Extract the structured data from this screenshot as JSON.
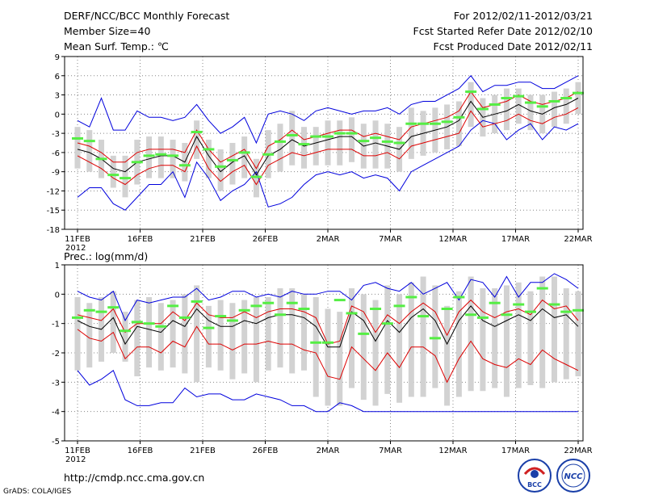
{
  "header": {
    "title": "DERF/NCC/BCC Monthly Forecast",
    "member_size": "Member Size=40",
    "variable1": "Mean Surf. Temp.: ℃",
    "period": "For 2012/02/11-2012/03/21",
    "start_date": "Fcst Started Refer Date 2012/02/10",
    "produced_date": "Fcst Produced Date 2012/02/11"
  },
  "panel2_label": "Prec.: log(mm/d)",
  "footer": {
    "url": "http://cmdp.ncc.cma.gov.cn",
    "grads": "GrADS: COLA/IGES"
  },
  "logos": {
    "bcc": "BCC",
    "ncc": "NCC"
  },
  "colors": {
    "box": "#d2d2d2",
    "median": "#55ee44",
    "mean": "#000000",
    "inner": "#dd0000",
    "outer": "#0000dd",
    "grid": "#888888"
  },
  "chart_data": [
    {
      "type": "line",
      "title": "Mean Surf. Temp.: ℃",
      "ylim": [
        -18,
        9
      ],
      "yticks": [
        -18,
        -15,
        -12,
        -9,
        -6,
        -3,
        0,
        3,
        6,
        9
      ],
      "xticks": [
        "11FEB",
        "16FEB",
        "21FEB",
        "26FEB",
        "2MAR",
        "7MAR",
        "12MAR",
        "17MAR",
        "22MAR"
      ],
      "xtick_year": "2012",
      "x_days": 40,
      "series": [
        {
          "name": "max",
          "values": [
            -13,
            -11.5,
            -11.5,
            -14,
            -15,
            -13,
            -11,
            -11,
            -9,
            -13,
            -7.5,
            -10,
            -13.5,
            -12,
            -11,
            -9,
            -14.5,
            -14,
            -13,
            -11,
            -9.5,
            -9,
            -9.5,
            -9,
            -10,
            -9.5,
            -10,
            -12,
            -9,
            -8,
            -7,
            -6,
            -5,
            -2.5,
            -1,
            -1.5,
            -4,
            -2.5,
            -1.5,
            -4,
            -2,
            -2.5,
            -1.5
          ]
        },
        {
          "name": "min_line",
          "values": [
            -1,
            -2,
            2.5,
            -2.5,
            -2.5,
            0.5,
            -0.5,
            -0.5,
            -1,
            -0.5,
            1.5,
            -1,
            -3,
            -2,
            -0.5,
            -4.5,
            0,
            0.5,
            0,
            -1,
            0.5,
            1,
            0.5,
            0,
            0.5,
            0.5,
            1,
            0,
            1.5,
            2,
            2,
            3,
            4,
            6,
            3.5,
            4.5,
            4.5,
            5,
            5,
            4,
            4,
            5,
            6
          ]
        },
        {
          "name": "p_upper",
          "values": [
            -4.5,
            -5,
            -6,
            -7.5,
            -7.5,
            -6,
            -5.5,
            -5.5,
            -5.5,
            -6,
            -2.5,
            -5.5,
            -7.5,
            -6.5,
            -5.5,
            -8.5,
            -5,
            -4,
            -2.5,
            -4,
            -3.5,
            -3,
            -2.5,
            -2.5,
            -3.5,
            -3,
            -3.5,
            -4,
            -2,
            -1.5,
            -1,
            -0.5,
            0.5,
            3.5,
            1,
            1.5,
            2,
            3,
            2,
            1.5,
            2,
            2.5,
            3.5
          ]
        },
        {
          "name": "p_lower",
          "values": [
            -6.5,
            -7.5,
            -8.5,
            -10,
            -11,
            -9.5,
            -8.5,
            -8,
            -8,
            -9,
            -5,
            -8.5,
            -10.5,
            -9,
            -8,
            -11,
            -8,
            -7,
            -6,
            -6.5,
            -6,
            -5.5,
            -5.5,
            -5.5,
            -6.5,
            -6.5,
            -6,
            -7,
            -5,
            -4.5,
            -4,
            -3.5,
            -3,
            0.5,
            -2,
            -1.5,
            -1,
            0,
            -1,
            -1.5,
            -0.5,
            0,
            1
          ]
        },
        {
          "name": "mean",
          "values": [
            -5.5,
            -6,
            -7,
            -8.5,
            -9,
            -7.5,
            -7,
            -6.5,
            -6.5,
            -7.5,
            -3.5,
            -6.5,
            -9,
            -7.5,
            -6.5,
            -9.5,
            -6.5,
            -5.5,
            -4,
            -5,
            -4.5,
            -4,
            -3.5,
            -3.5,
            -5,
            -4.5,
            -5,
            -5.5,
            -3.5,
            -3,
            -2.5,
            -2,
            -1,
            2,
            -0.5,
            0,
            0.5,
            1.5,
            0.5,
            0,
            1,
            1.5,
            2.5
          ]
        },
        {
          "name": "box_bottom",
          "values": [
            -8.5,
            -9,
            -10,
            -11.5,
            -13,
            -11,
            -10,
            -10,
            -10,
            -10.5,
            -7,
            -10,
            -12,
            -11,
            -10,
            -13,
            -10,
            -9,
            -8,
            -8.5,
            -8,
            -8,
            -8,
            -7.5,
            -8.5,
            -8.5,
            -8.5,
            -9,
            -7,
            -6.5,
            -6,
            -5.5,
            -5,
            -2,
            -3.5,
            -3,
            -2.5,
            -1.5,
            -2.5,
            -3,
            -2,
            -1.5,
            0
          ]
        },
        {
          "name": "box_top",
          "values": [
            -2,
            -2.5,
            -4,
            -6.5,
            -6.5,
            -4,
            -3.5,
            -3.5,
            -4,
            -4.5,
            -1,
            -4,
            -5.5,
            -4.5,
            -3.5,
            -7,
            -2.5,
            -1.5,
            0.5,
            -2,
            -2,
            -1,
            -1,
            -0.5,
            -1.5,
            -1,
            -1.5,
            -2,
            1,
            0.5,
            1,
            1.5,
            2,
            5,
            2.5,
            3,
            4,
            4,
            3,
            3,
            3.5,
            4,
            5
          ]
        },
        {
          "name": "median",
          "values": [
            -3.8,
            -4.2,
            -7,
            -9.5,
            -10,
            -7.5,
            -6.5,
            -6.3,
            -6.5,
            -8,
            -2.8,
            -5.5,
            -8.2,
            -7.2,
            -6,
            -9.8,
            -6.3,
            -4.3,
            -3.3,
            -4.7,
            -3.5,
            -3.5,
            -3,
            -3,
            -4.2,
            -3.7,
            -4.3,
            -4.5,
            -1.5,
            -1.5,
            -1.5,
            -1.2,
            -0.5,
            3.5,
            0.8,
            1.5,
            2.5,
            2.8,
            1.8,
            1.2,
            2,
            2.5,
            3.3
          ]
        }
      ]
    },
    {
      "type": "line",
      "title": "Prec.: log(mm/d)",
      "ylim": [
        -5,
        1
      ],
      "yticks": [
        -5,
        -4,
        -3,
        -2,
        -1,
        0,
        1
      ],
      "xticks": [
        "11FEB",
        "16FEB",
        "21FEB",
        "26FEB",
        "2MAR",
        "7MAR",
        "12MAR",
        "17MAR",
        "22MAR"
      ],
      "xtick_year": "2012",
      "x_days": 40,
      "series": [
        {
          "name": "min_line",
          "values": [
            -2.6,
            -3.1,
            -2.9,
            -2.6,
            -3.6,
            -3.8,
            -3.8,
            -3.7,
            -3.7,
            -3.2,
            -3.5,
            -3.4,
            -3.4,
            -3.6,
            -3.6,
            -3.4,
            -3.5,
            -3.6,
            -3.8,
            -3.8,
            -4,
            -4,
            -3.7,
            -3.8,
            -4,
            -4,
            -4,
            -4,
            -4,
            -4,
            -4,
            -4,
            -4,
            -4,
            -4,
            -4,
            -4,
            -4,
            -4,
            -4,
            -4,
            -4,
            -4
          ]
        },
        {
          "name": "max_line",
          "values": [
            0.1,
            -0.1,
            -0.2,
            0.1,
            -0.9,
            -0.2,
            -0.3,
            -0.2,
            -0.1,
            -0.1,
            0.2,
            -0.2,
            -0.1,
            0.1,
            0.1,
            -0.1,
            0,
            -0.1,
            0.1,
            0,
            0,
            0.1,
            0.1,
            -0.2,
            0.3,
            0.4,
            0.2,
            0.1,
            0.4,
            0,
            0.2,
            0.4,
            -0.2,
            0.5,
            0.4,
            -0.1,
            0.6,
            -0.1,
            0.4,
            0.4,
            0.7,
            0.5,
            0.2
          ]
        },
        {
          "name": "p_upper",
          "values": [
            -0.7,
            -0.8,
            -0.9,
            -0.5,
            -1.3,
            -1,
            -1,
            -1,
            -0.6,
            -0.9,
            -0.3,
            -0.7,
            -0.8,
            -0.8,
            -0.6,
            -0.8,
            -0.6,
            -0.5,
            -0.5,
            -0.6,
            -0.8,
            -1.7,
            -1.6,
            -0.4,
            -0.6,
            -1.3,
            -0.7,
            -1,
            -0.6,
            -0.3,
            -0.6,
            -1.4,
            -0.6,
            -0.2,
            -0.6,
            -0.8,
            -0.6,
            -0.5,
            -0.7,
            -0.2,
            -0.5,
            -0.4,
            -0.9
          ]
        },
        {
          "name": "mean",
          "values": [
            -0.9,
            -1.1,
            -1.2,
            -0.8,
            -1.7,
            -1.1,
            -1.2,
            -1.3,
            -0.9,
            -1.1,
            -0.5,
            -0.9,
            -1.1,
            -1.1,
            -0.9,
            -1,
            -0.8,
            -0.7,
            -0.7,
            -0.8,
            -1.1,
            -1.8,
            -1.8,
            -0.6,
            -0.9,
            -1.6,
            -0.9,
            -1.3,
            -0.8,
            -0.5,
            -0.9,
            -1.7,
            -0.9,
            -0.4,
            -0.9,
            -1.1,
            -0.9,
            -0.7,
            -0.9,
            -0.5,
            -0.8,
            -0.7,
            -1.1
          ]
        },
        {
          "name": "p_lower",
          "values": [
            -1.2,
            -1.5,
            -1.6,
            -1.3,
            -2.2,
            -1.8,
            -1.8,
            -2,
            -1.6,
            -1.8,
            -1.1,
            -1.7,
            -1.7,
            -1.9,
            -1.7,
            -1.7,
            -1.6,
            -1.7,
            -1.7,
            -1.9,
            -2,
            -2.8,
            -2.9,
            -1.8,
            -2.2,
            -2.6,
            -2,
            -2.5,
            -1.8,
            -1.8,
            -2.1,
            -3,
            -2.2,
            -1.6,
            -2.2,
            -2.4,
            -2.5,
            -2.2,
            -2.4,
            -1.9,
            -2.2,
            -2.4,
            -2.6
          ]
        },
        {
          "name": "box_bottom",
          "values": [
            -2.6,
            -2.5,
            -2.3,
            -2,
            -2.3,
            -2.8,
            -2.5,
            -2.6,
            -2.5,
            -2.7,
            -3,
            -2.5,
            -2.6,
            -2.9,
            -2.7,
            -3,
            -2.6,
            -2.5,
            -2.7,
            -2.6,
            -3.5,
            -3.8,
            -3.8,
            -3.2,
            -3.6,
            -3.8,
            -3.4,
            -3.7,
            -3.5,
            -3.5,
            -3.2,
            -3.8,
            -3.5,
            -3.3,
            -3.3,
            -3.2,
            -3.5,
            -3.2,
            -3.1,
            -3.2,
            -3,
            -2.9,
            -2.8
          ]
        },
        {
          "name": "box_top",
          "values": [
            -0.1,
            -0.3,
            -0.1,
            0.1,
            -0.6,
            -0.2,
            -0.1,
            -0.3,
            -0.2,
            0,
            0.3,
            -0.4,
            -0.2,
            -0.3,
            -0.2,
            -0.1,
            -0.1,
            0.2,
            0.2,
            0,
            -0.1,
            -0.5,
            -0.6,
            0.2,
            0,
            -0.2,
            0.3,
            0,
            0.4,
            0.6,
            0.3,
            -0.4,
            0.1,
            0.6,
            0.2,
            0.2,
            0.3,
            0.4,
            0.1,
            0.6,
            0.6,
            0.2,
            0.1
          ]
        },
        {
          "name": "median",
          "values": [
            -0.8,
            -0.55,
            -0.6,
            -0.45,
            -1.25,
            -0.95,
            -1,
            -1.1,
            -0.4,
            -0.8,
            -0.25,
            -1.15,
            -0.75,
            -0.9,
            -0.55,
            -0.4,
            -0.3,
            -0.7,
            -0.3,
            -0.5,
            -1.65,
            -1.65,
            -0.2,
            -0.65,
            -1.35,
            -0.5,
            -1,
            -0.4,
            -0.1,
            -0.75,
            -1.5,
            -0.5,
            -0.1,
            -0.7,
            -0.8,
            -0.3,
            -0.7,
            -0.35,
            -0.6,
            0.2,
            -0.35,
            -0.6,
            -0.55
          ]
        }
      ]
    }
  ]
}
